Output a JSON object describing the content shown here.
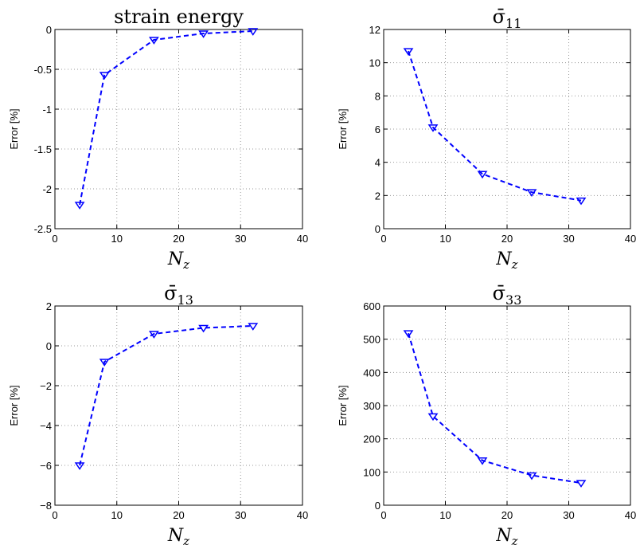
{
  "chart_data": [
    {
      "type": "line",
      "title": "strain energy",
      "xlabel": "N_z",
      "ylabel": "Error [%]",
      "xlim": [
        0,
        40
      ],
      "ylim": [
        -2.5,
        0
      ],
      "xticks": [
        "0",
        "10",
        "20",
        "30",
        "40"
      ],
      "yticks": [
        "-2.5",
        "-2",
        "-1.5",
        "-1",
        "-0.5",
        "0"
      ],
      "grid": true,
      "series": [
        {
          "x": [
            4,
            8,
            16,
            24,
            32
          ],
          "y": [
            -2.2,
            -0.57,
            -0.13,
            -0.05,
            -0.02
          ]
        }
      ]
    },
    {
      "type": "line",
      "title": "σ̄11",
      "xlabel": "N_z",
      "ylabel": "Error [%]",
      "xlim": [
        0,
        40
      ],
      "ylim": [
        0,
        12
      ],
      "xticks": [
        "0",
        "10",
        "20",
        "30",
        "40"
      ],
      "yticks": [
        "0",
        "2",
        "4",
        "6",
        "8",
        "10",
        "12"
      ],
      "grid": true,
      "series": [
        {
          "x": [
            4,
            8,
            16,
            24,
            32
          ],
          "y": [
            10.7,
            6.1,
            3.3,
            2.2,
            1.7
          ]
        }
      ]
    },
    {
      "type": "line",
      "title": "σ̄13",
      "xlabel": "N_z",
      "ylabel": "Error [%]",
      "xlim": [
        0,
        40
      ],
      "ylim": [
        -8,
        2
      ],
      "xticks": [
        "0",
        "10",
        "20",
        "30",
        "40"
      ],
      "yticks": [
        "−8",
        "−6",
        "−4",
        "−2",
        "0",
        "2"
      ],
      "grid": true,
      "series": [
        {
          "x": [
            4,
            8,
            16,
            24,
            32
          ],
          "y": [
            -6.0,
            -0.8,
            0.6,
            0.9,
            1.0
          ]
        }
      ]
    },
    {
      "type": "line",
      "title": "σ̄33",
      "xlabel": "N_z",
      "ylabel": "Error [%]",
      "xlim": [
        0,
        40
      ],
      "ylim": [
        0,
        600
      ],
      "xticks": [
        "0",
        "10",
        "20",
        "30",
        "40"
      ],
      "yticks": [
        "0",
        "100",
        "200",
        "300",
        "400",
        "500",
        "600"
      ],
      "grid": true,
      "series": [
        {
          "x": [
            4,
            8,
            16,
            24,
            32
          ],
          "y": [
            518,
            268,
            135,
            90,
            67
          ]
        }
      ]
    }
  ],
  "colors": {
    "series": "#0000ff",
    "grid": "#9a9a9a",
    "axis": "#000000"
  },
  "marker": "triangle-down",
  "line_style": "dashed"
}
